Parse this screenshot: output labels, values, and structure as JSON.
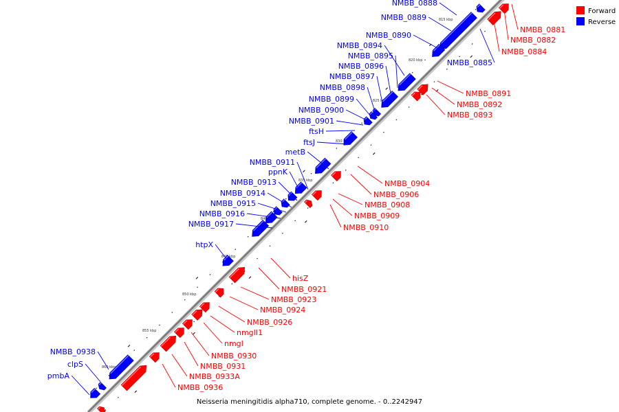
{
  "colors": {
    "forward": "#ff0000",
    "reverse": "#0000ff",
    "backbone": "#777777"
  },
  "legend": [
    {
      "name": "Forward",
      "color": "#ff0000"
    },
    {
      "name": "Reverse",
      "color": "#0000ff"
    }
  ],
  "footer": "Neisseria meningitidis alpha710, complete genome. - 0..2242947",
  "scale_ticks": [
    "815 kbp",
    "820 kbp",
    "825 kbp",
    "830 kbp",
    "835 kbp",
    "840 kbp",
    "845 kbp",
    "850 kbp",
    "855 kbp",
    "860 kbp"
  ],
  "genes_reverse": [
    "NMBB_0888",
    "NMBB_0889",
    "NMBB_0890",
    "NMBB_0894",
    "NMBB_0895",
    "NMBB_0896",
    "NMBB_0897",
    "NMBB_0898",
    "NMBB_0899",
    "NMBB_0900",
    "NMBB_0901",
    "ftsH",
    "ftsJ",
    "metB",
    "NMBB_0911",
    "ppnK",
    "NMBB_0913",
    "NMBB_0914",
    "NMBB_0915",
    "NMBB_0916",
    "NMBB_0917",
    "htpX",
    "NMBB_0938",
    "clpS",
    "pmbA",
    "NMBB_0885"
  ],
  "genes_forward": [
    "NMBB_0881",
    "NMBB_0882",
    "NMBB_0884",
    "NMBB_0891",
    "NMBB_0892",
    "NMBB_0893",
    "NMBB_0904",
    "NMBB_0906",
    "NMBB_0908",
    "NMBB_0909",
    "NMBB_0910",
    "hisZ",
    "NMBB_0921",
    "NMBB_0923",
    "NMBB_0924",
    "NMBB_0926",
    "nmgII1",
    "nmgI",
    "NMBB_0930",
    "NMBB_0931",
    "NMBB_0933A",
    "NMBB_0936"
  ]
}
